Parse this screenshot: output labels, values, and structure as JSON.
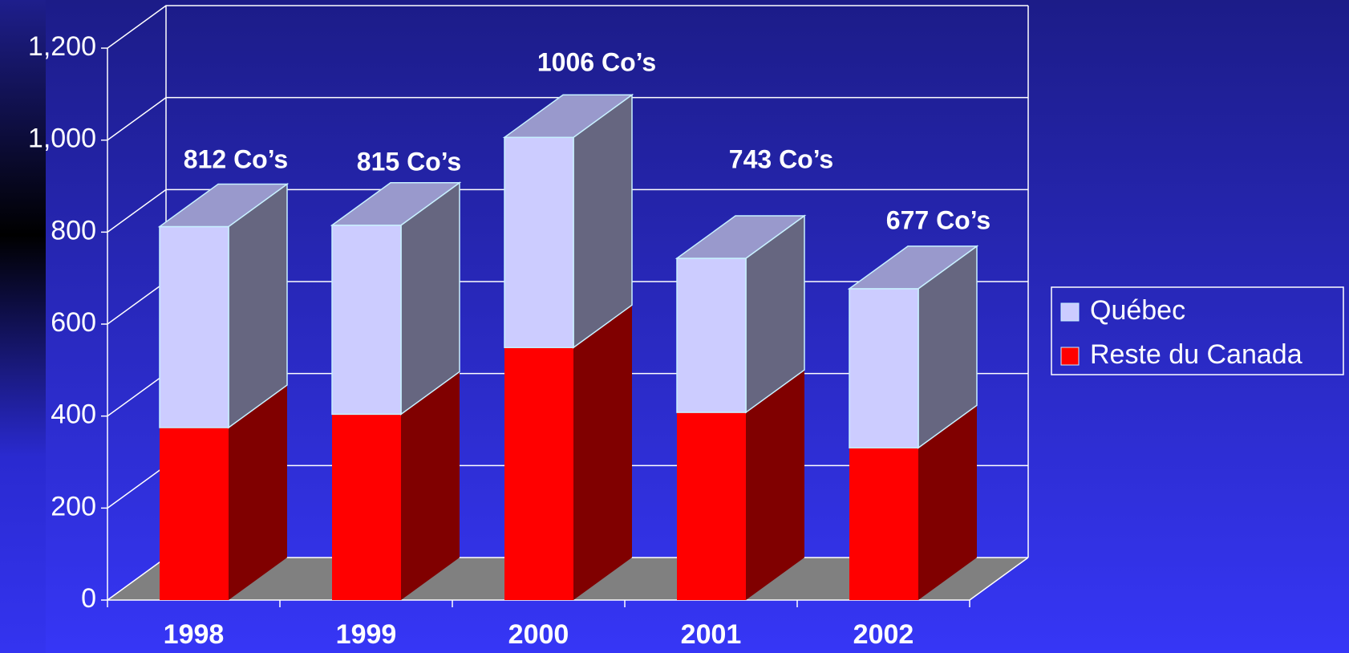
{
  "chart_data": {
    "type": "bar3d_stacked",
    "categories": [
      "1998",
      "1999",
      "2000",
      "2001",
      "2002"
    ],
    "series": [
      {
        "name": "Reste du Canada",
        "color": "#ff0000",
        "side_color": "#800000",
        "values": [
          375,
          404,
          549,
          408,
          331
        ]
      },
      {
        "name": "Québec",
        "color": "#ccccff",
        "side_color": "#666680",
        "top_color": "#9999cc",
        "values": [
          437,
          411,
          457,
          335,
          346
        ]
      }
    ],
    "annotations": [
      "812 Co’s",
      "815 Co’s",
      "1006 Co’s",
      "743 Co’s",
      "677 Co’s"
    ],
    "ylim": [
      0,
      1200
    ],
    "yticks": [
      0,
      200,
      400,
      600,
      800,
      {
        "value": 1000,
        "label": "1,000"
      },
      {
        "value": 1200,
        "label": "1,200"
      }
    ],
    "grid": true,
    "legend": "right"
  }
}
